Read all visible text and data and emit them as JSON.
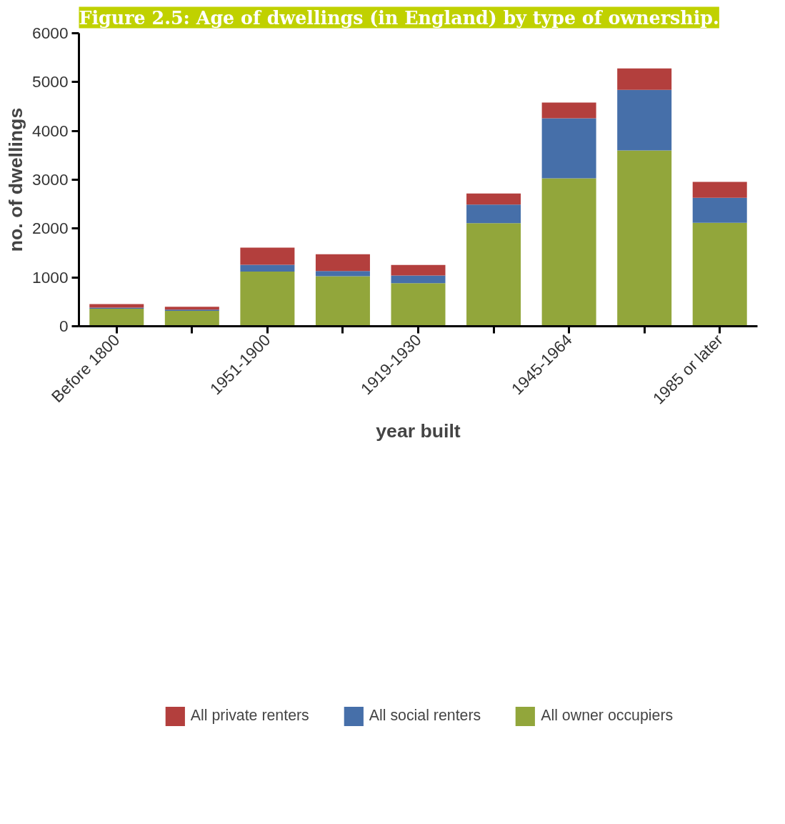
{
  "chart_data": {
    "type": "bar",
    "stacked": true,
    "title": "Figure 2.5: Age of dwellings (in England) by type of ownership.",
    "xlabel": "year built",
    "ylabel": "no. of dwellings",
    "categories": [
      "Before 1800",
      null,
      "1951-1900",
      null,
      "1919-1930",
      null,
      "1945-1964",
      null,
      "1985 or later"
    ],
    "series": [
      {
        "name": "All owner occupiers",
        "color": "#92a63b",
        "values": [
          360,
          315,
          1120,
          1025,
          880,
          2110,
          3030,
          3600,
          2120
        ]
      },
      {
        "name": "All social renters",
        "color": "#466fa9",
        "values": [
          20,
          25,
          140,
          105,
          160,
          380,
          1230,
          1240,
          510
        ]
      },
      {
        "name": "All private renters",
        "color": "#b33f3d",
        "values": [
          75,
          60,
          350,
          345,
          215,
          230,
          320,
          440,
          325
        ]
      }
    ],
    "ylim": [
      0,
      6000
    ],
    "yticks": [
      0,
      1000,
      2000,
      3000,
      4000,
      5000,
      6000
    ],
    "grid": false,
    "legend": "bottom"
  }
}
